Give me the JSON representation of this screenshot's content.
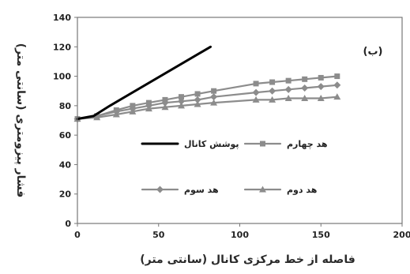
{
  "chart_data": {
    "type": "line",
    "panel_label": "(ب)",
    "xlabel": "فاصله از خط مرکزی کانال (سانتی متر)",
    "ylabel": "فشار پیزومتری (سانتی متر)",
    "xlim": [
      0,
      200
    ],
    "ylim": [
      0,
      140
    ],
    "xticks": [
      0,
      50,
      100,
      150,
      200
    ],
    "yticks": [
      0,
      20,
      40,
      60,
      80,
      100,
      120,
      140
    ],
    "grid": false,
    "legend_position": "center",
    "series": [
      {
        "name": "پوشش کانال",
        "marker": "none",
        "color": "#000000",
        "points": [
          [
            0,
            71
          ],
          [
            10,
            73
          ],
          [
            20,
            80
          ],
          [
            82,
            120
          ]
        ]
      },
      {
        "name": "هد چهارم",
        "marker": "square",
        "color": "#8c8c8c",
        "points": [
          [
            0,
            71
          ],
          [
            12,
            73
          ],
          [
            24,
            77
          ],
          [
            34,
            80
          ],
          [
            44,
            82
          ],
          [
            54,
            84
          ],
          [
            64,
            86
          ],
          [
            74,
            88
          ],
          [
            84,
            90
          ],
          [
            110,
            95
          ],
          [
            120,
            96
          ],
          [
            130,
            97
          ],
          [
            140,
            98
          ],
          [
            150,
            99
          ],
          [
            160,
            100
          ]
        ]
      },
      {
        "name": "هد سوم",
        "marker": "diamond",
        "color": "#8c8c8c",
        "points": [
          [
            0,
            71
          ],
          [
            12,
            73
          ],
          [
            24,
            76
          ],
          [
            34,
            78
          ],
          [
            44,
            80
          ],
          [
            54,
            82
          ],
          [
            64,
            83
          ],
          [
            74,
            84
          ],
          [
            84,
            86
          ],
          [
            110,
            89
          ],
          [
            120,
            90
          ],
          [
            130,
            91
          ],
          [
            140,
            92
          ],
          [
            150,
            93
          ],
          [
            160,
            94
          ]
        ]
      },
      {
        "name": "هد دوم",
        "marker": "triangle",
        "color": "#8c8c8c",
        "points": [
          [
            0,
            71
          ],
          [
            12,
            72
          ],
          [
            24,
            74
          ],
          [
            34,
            76
          ],
          [
            44,
            78
          ],
          [
            54,
            79
          ],
          [
            64,
            80
          ],
          [
            74,
            81
          ],
          [
            84,
            82
          ],
          [
            110,
            84
          ],
          [
            120,
            84
          ],
          [
            130,
            85
          ],
          [
            140,
            85
          ],
          [
            150,
            85
          ],
          [
            160,
            86
          ]
        ]
      }
    ]
  }
}
